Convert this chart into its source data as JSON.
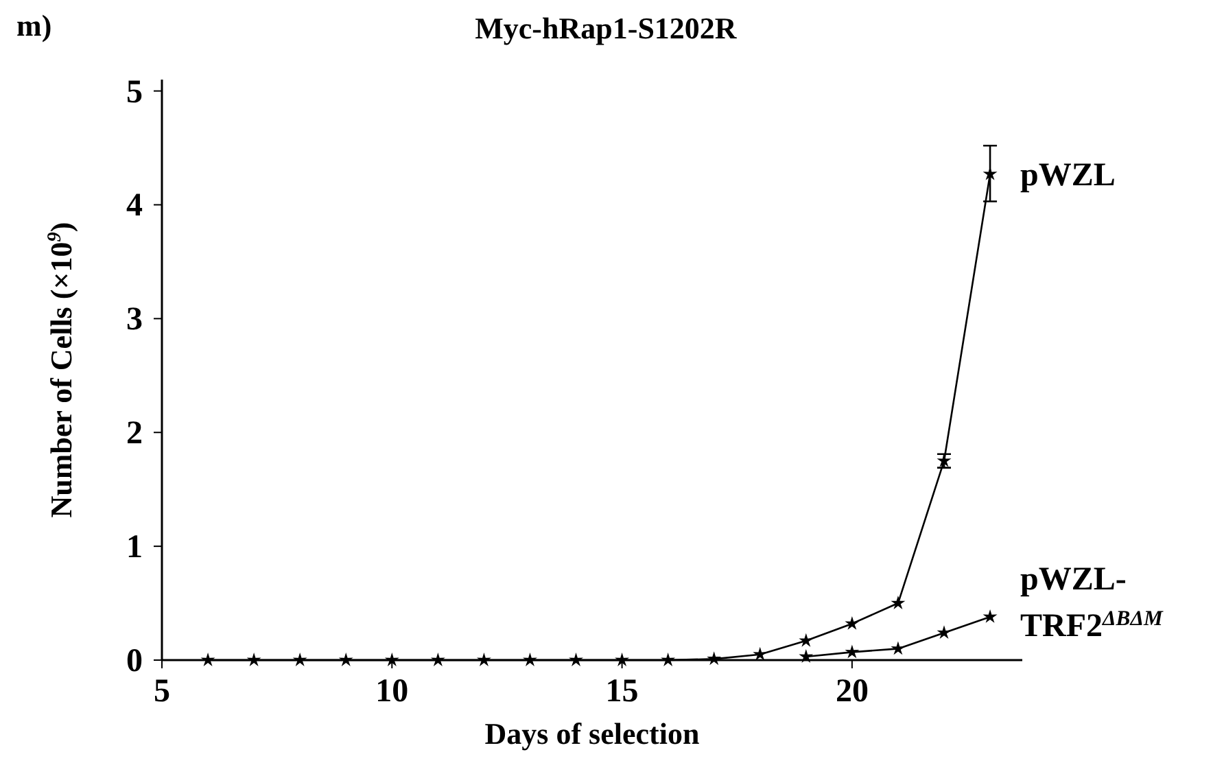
{
  "chart_data": {
    "type": "line",
    "title": "Myc-hRap1-S1202R",
    "xlabel": "Days of selection",
    "ylabel": "Number of Cells (×10$^{9}$)",
    "annotations": [
      "m)"
    ],
    "xlim": [
      5,
      23.7
    ],
    "xticks": [
      5,
      10,
      15,
      20
    ],
    "ylim": [
      0,
      5.1
    ],
    "yticks": [
      0,
      1,
      2,
      3,
      4,
      5
    ],
    "grid": false,
    "marker": "star",
    "line_style": "solid",
    "series": [
      {
        "name": "pWZL",
        "color": "#000000",
        "x": [
          6,
          7,
          8,
          9,
          10,
          11,
          12,
          13,
          14,
          15,
          16,
          17,
          18,
          19,
          20,
          21,
          22,
          23
        ],
        "values": [
          0,
          0,
          0,
          0,
          0,
          0,
          0,
          0,
          0,
          0,
          0,
          0.01,
          0.05,
          0.17,
          0.32,
          0.5,
          1.75,
          4.27
        ],
        "errors": [
          null,
          null,
          null,
          null,
          null,
          null,
          null,
          null,
          null,
          null,
          null,
          null,
          null,
          null,
          null,
          null,
          0.06,
          [
            4.03,
            4.52
          ]
        ]
      },
      {
        "name": "pWZL-TRF2$^{ΔBΔM}$",
        "color": "#000000",
        "x": [
          19,
          20,
          21,
          22,
          23
        ],
        "values": [
          0.03,
          0.07,
          0.1,
          0.24,
          0.38
        ]
      }
    ]
  }
}
